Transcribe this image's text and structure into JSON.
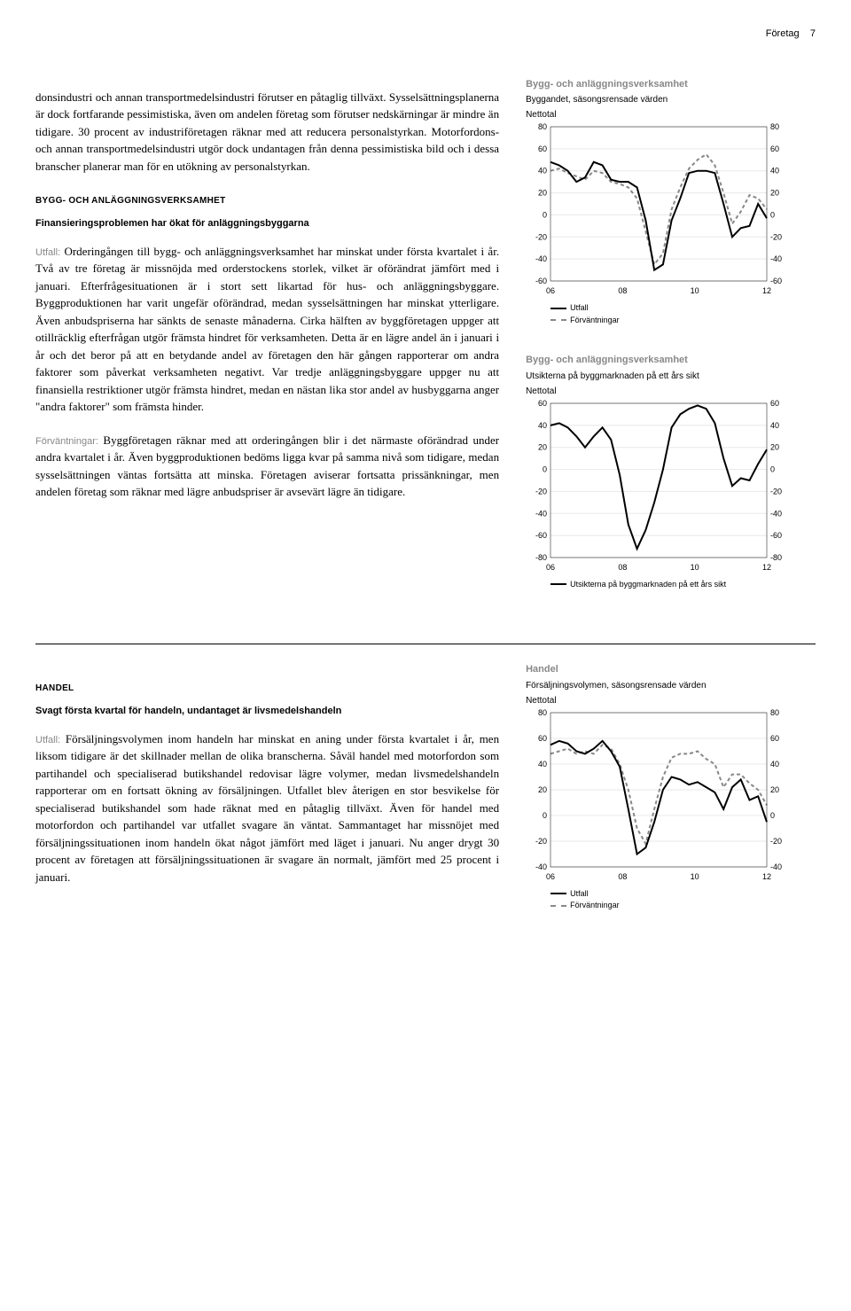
{
  "header": {
    "section": "Företag",
    "page": "7"
  },
  "para1": "donsindustri och annan transportmedelsindustri förutser en påtaglig tillväxt. Sysselsättningsplanerna är dock fortfarande pessimistiska, även om andelen företag som förutser nedskärningar är mindre än tidigare. 30 procent av industriföretagen räknar med att reducera personalstyrkan. Motorfordons- och annan transportmedelsindustri utgör dock undantagen från denna pessimistiska bild och i dessa branscher planerar man för en utökning av personalstyrkan.",
  "sectionA": "BYGG- OCH ANLÄGGNINGSVERKSAMHET",
  "subA": "Finansieringsproblemen har ökat för anläggningsbyggarna",
  "utfallLabel": "Utfall:",
  "para2": " Orderingången till bygg- och anläggningsverksamhet har minskat under första kvartalet i år. Två av tre företag är missnöjda med orderstockens storlek, vilket är oförändrat jämfört med i januari. Efterfrågesituationen är i stort sett likartad för hus- och anläggningsbyggare. Byggproduktionen har varit ungefär oförändrad, medan sysselsättningen har minskat ytterligare. Även anbudspriserna har sänkts de senaste månaderna. Cirka hälften av byggföretagen uppger att otillräcklig efterfrågan utgör främsta hindret för verksamheten. Detta är en lägre andel än i januari i år och det beror på att en betydande andel av företagen den här gången rapporterar om andra faktorer som påverkat verksamheten negativt. Var tredje anläggningsbyggare uppger nu att finansiella restriktioner utgör främsta hindret, medan en nästan lika stor andel av husbyggarna anger \"andra faktorer\" som främsta hinder.",
  "forvLabel": "Förväntningar:",
  "para3": " Byggföretagen räknar med att orderingången blir i det närmaste oförändrad under andra kvartalet i år. Även byggproduktionen bedöms ligga kvar på samma nivå som tidigare, medan sysselsättningen väntas fortsätta att minska. Företagen aviserar fortsatta prissänkningar, men andelen företag som räknar med lägre anbudspriser är avsevärt lägre än tidigare.",
  "sectionB": "HANDEL",
  "subB": "Svagt första kvartal för handeln, undantaget är livsmedelshandeln",
  "para4": " Försäljningsvolymen inom handeln har minskat en aning under första kvartalet i år, men liksom tidigare är det skillnader mellan de olika branscherna. Såväl handel med motorfordon som partihandel och specialiserad butikshandel redovisar lägre volymer, medan livsmedelshandeln rapporterar om en fortsatt ökning av försäljningen. Utfallet blev återigen en stor besvikelse för specialiserad butikshandel som hade räknat med en påtaglig tillväxt. Även för handel med motorfordon och partihandel var utfallet svagare än väntat. Sammantaget har missnöjet med försäljningssituationen inom handeln ökat något jämfört med läget i januari. Nu anger drygt 30 procent av företagen att försäljningssituationen är svagare än normalt, jämfört med 25 procent i januari.",
  "chart1": {
    "title": "Bygg- och anläggningsverksamhet",
    "subtitle": "Byggandet, säsongsrensade värden",
    "ylabel": "Nettotal",
    "ylim": [
      -60,
      80
    ],
    "ytick_step": 20,
    "xticks": [
      "06",
      "08",
      "10",
      "12"
    ],
    "series_solid_color": "#000000",
    "series_dashed_color": "#888888",
    "grid_color": "#e8e8e8",
    "background_color": "#ffffff",
    "line_width": 2,
    "legend": [
      "Utfall",
      "Förväntningar"
    ],
    "utfall": [
      48,
      45,
      40,
      30,
      34,
      48,
      45,
      32,
      30,
      30,
      25,
      -5,
      -50,
      -45,
      -5,
      15,
      38,
      40,
      40,
      38,
      10,
      -20,
      -12,
      -10,
      10,
      -3
    ],
    "forv": [
      40,
      42,
      38,
      35,
      32,
      40,
      38,
      30,
      28,
      25,
      15,
      -15,
      -45,
      -35,
      5,
      25,
      42,
      50,
      55,
      45,
      20,
      -8,
      3,
      18,
      15,
      5
    ]
  },
  "chart2": {
    "title": "Bygg- och anläggningsverksamhet",
    "subtitle": "Utsikterna på byggmarknaden på ett års sikt",
    "ylabel": "Nettotal",
    "ylim": [
      -80,
      60
    ],
    "ytick_step": 20,
    "xticks": [
      "06",
      "08",
      "10",
      "12"
    ],
    "series_solid_color": "#000000",
    "grid_color": "#e8e8e8",
    "background_color": "#ffffff",
    "line_width": 2,
    "legend_single": "Utsikterna på byggmarknaden på ett års sikt",
    "values": [
      40,
      42,
      38,
      30,
      20,
      30,
      38,
      27,
      -5,
      -50,
      -72,
      -55,
      -30,
      0,
      38,
      50,
      55,
      58,
      55,
      42,
      10,
      -15,
      -8,
      -10,
      5,
      18
    ]
  },
  "chart3": {
    "title": "Handel",
    "subtitle": "Försäljningsvolymen, säsongsrensade värden",
    "ylabel": "Nettotal",
    "ylim": [
      -40,
      80
    ],
    "ytick_step": 20,
    "xticks": [
      "06",
      "08",
      "10",
      "12"
    ],
    "series_solid_color": "#000000",
    "series_dashed_color": "#888888",
    "grid_color": "#e8e8e8",
    "background_color": "#ffffff",
    "line_width": 2,
    "legend": [
      "Utfall",
      "Förväntningar"
    ],
    "utfall": [
      55,
      58,
      56,
      50,
      48,
      52,
      58,
      50,
      38,
      5,
      -30,
      -25,
      -5,
      20,
      30,
      28,
      24,
      26,
      22,
      18,
      5,
      22,
      28,
      12,
      15,
      -5
    ],
    "forv": [
      48,
      50,
      52,
      48,
      50,
      48,
      55,
      52,
      40,
      20,
      -10,
      -22,
      5,
      30,
      45,
      48,
      48,
      50,
      44,
      40,
      22,
      32,
      32,
      25,
      20,
      8
    ]
  }
}
